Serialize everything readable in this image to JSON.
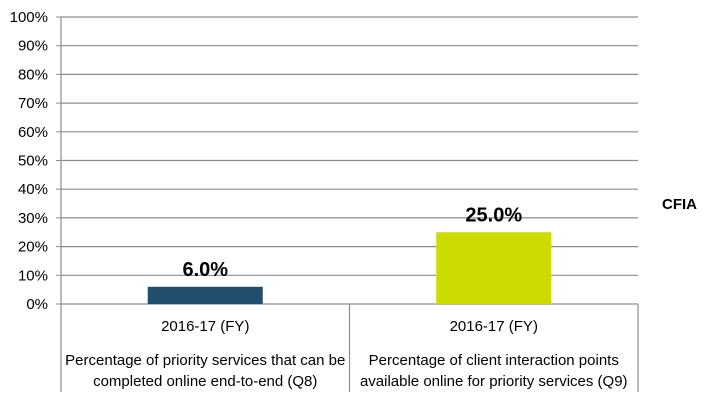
{
  "chart_data": {
    "type": "bar",
    "title": "",
    "xlabel": "",
    "ylabel": "",
    "ylim": [
      0,
      100
    ],
    "yticks": [
      "0%",
      "10%",
      "20%",
      "30%",
      "40%",
      "50%",
      "60%",
      "70%",
      "80%",
      "90%",
      "100%"
    ],
    "grid": true,
    "legend_placement": "right",
    "series": [
      {
        "name": "CFIA"
      }
    ],
    "categories": [
      {
        "period": "2016-17 (FY)",
        "label_line1": "Percentage of priority services that can be",
        "label_line2": "completed online end-to-end (Q8)",
        "value": 6.0,
        "value_label": "6.0%",
        "color": "#1f4e6e"
      },
      {
        "period": "2016-17 (FY)",
        "label_line1": "Percentage of client interaction points",
        "label_line2": "available online for priority services (Q9)",
        "value": 25.0,
        "value_label": "25.0%",
        "color": "#cddc00"
      }
    ]
  }
}
